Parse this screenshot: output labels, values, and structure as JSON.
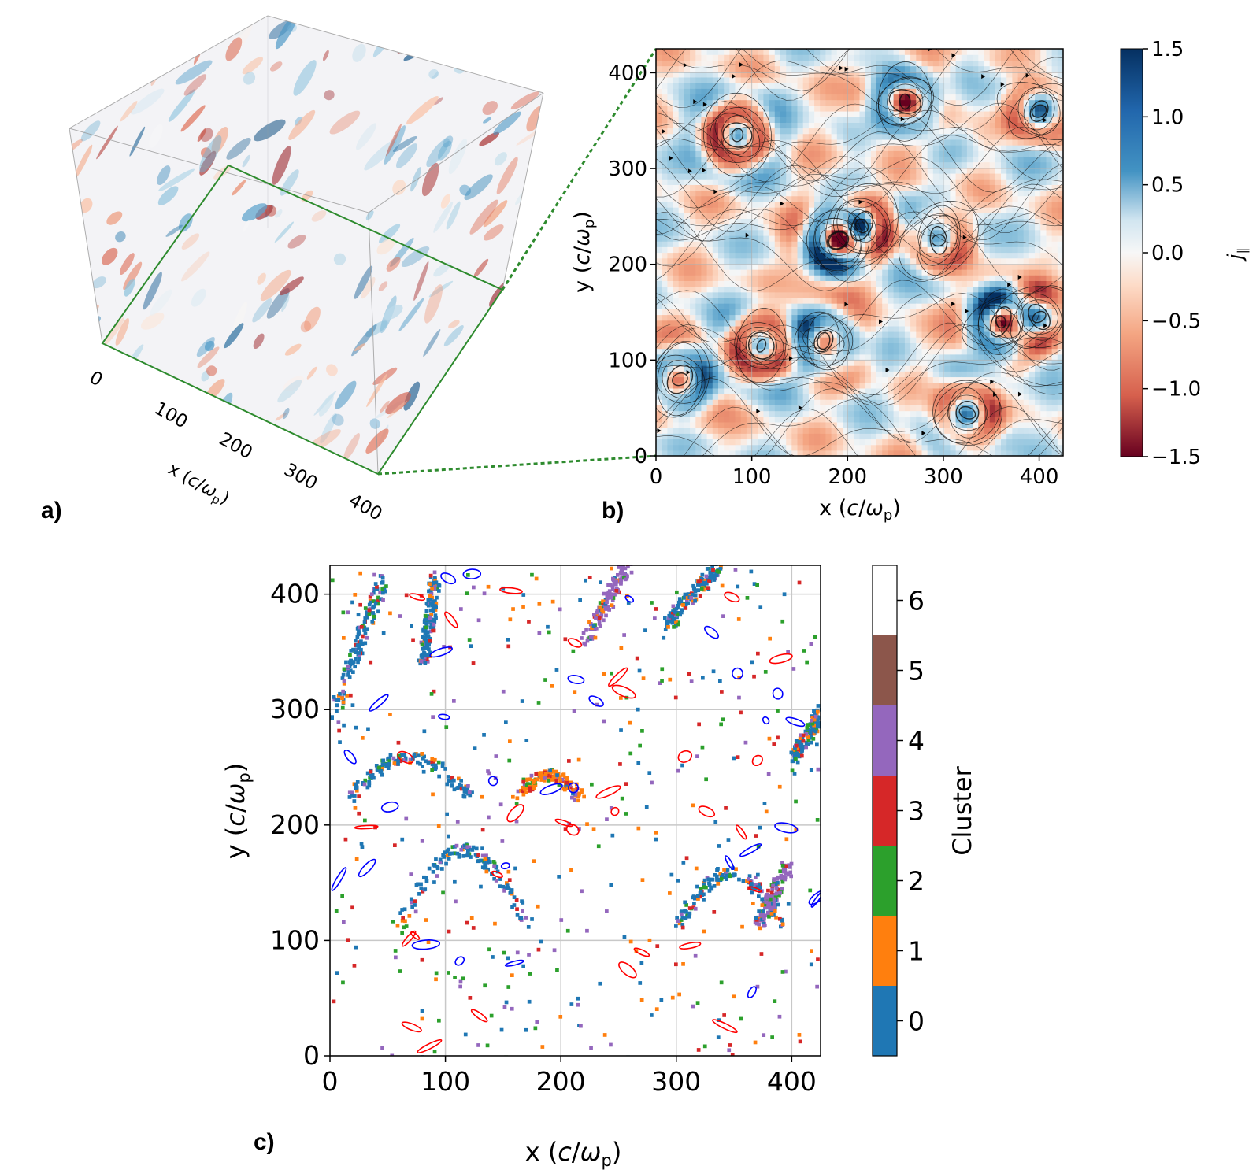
{
  "chart_data": [
    {
      "panel": "a)",
      "type": "heatmap",
      "x_axis": {
        "label": "x (c/ωp)",
        "ticks": [
          0,
          100,
          200,
          300,
          400
        ]
      },
      "colormap": "RdBu",
      "slice_plane_color": "#2e8b2e"
    },
    {
      "panel": "b)",
      "type": "heatmap",
      "xlabel": "x (c/ωp)",
      "ylabel": "y (c/ωp)",
      "xlim": [
        0,
        425
      ],
      "ylim": [
        0,
        425
      ],
      "xticks": [
        0,
        100,
        200,
        300,
        400
      ],
      "yticks": [
        0,
        100,
        200,
        300,
        400
      ],
      "grid": true,
      "colormap": "RdBu",
      "colorbar": {
        "label": "j∥",
        "range": [
          -1.5,
          1.5
        ],
        "ticks": [
          "1.5",
          "1.0",
          "0.5",
          "0.0",
          "−0.5",
          "−1.0",
          "−1.5"
        ]
      },
      "overlay": "magnetic field streamlines",
      "vortices": [
        {
          "x": 85,
          "y": 335,
          "strength": 1.0
        },
        {
          "x": 260,
          "y": 370,
          "strength": -0.9
        },
        {
          "x": 190,
          "y": 225,
          "strength": -1.0
        },
        {
          "x": 215,
          "y": 240,
          "strength": 0.8
        },
        {
          "x": 360,
          "y": 140,
          "strength": -1.0
        },
        {
          "x": 400,
          "y": 360,
          "strength": 0.7
        },
        {
          "x": 25,
          "y": 80,
          "strength": -0.8
        },
        {
          "x": 110,
          "y": 115,
          "strength": 0.9
        },
        {
          "x": 325,
          "y": 45,
          "strength": 0.8
        },
        {
          "x": 400,
          "y": 145,
          "strength": 0.7
        },
        {
          "x": 175,
          "y": 120,
          "strength": -0.7
        },
        {
          "x": 295,
          "y": 225,
          "strength": 0.6
        }
      ]
    },
    {
      "panel": "c)",
      "type": "heatmap",
      "xlabel": "x (c/ωp)",
      "ylabel": "y (c/ωp)",
      "xlim": [
        0,
        425
      ],
      "ylim": [
        0,
        425
      ],
      "xticks": [
        0,
        100,
        200,
        300,
        400
      ],
      "yticks": [
        0,
        100,
        200,
        300,
        400
      ],
      "grid": true,
      "colorbar": {
        "label": "Cluster",
        "ticks": [
          "6",
          "5",
          "4",
          "3",
          "2",
          "1",
          "0"
        ],
        "colors": [
          "#ffffff",
          "#8c564b",
          "#9467bd",
          "#d62728",
          "#2ca02c",
          "#ff7f0e",
          "#1f77b4"
        ]
      },
      "contour_colors": [
        "#0000ff",
        "#ff0000"
      ],
      "structures": [
        {
          "x": [
            0,
            45
          ],
          "y": [
            295,
            415
          ],
          "cluster": 0
        },
        {
          "x": [
            15,
            120
          ],
          "y": [
            225,
            260
          ],
          "cluster": 0
        },
        {
          "x": [
            60,
            170
          ],
          "y": [
            115,
            180
          ],
          "cluster": 0
        },
        {
          "x": [
            300,
            390
          ],
          "y": [
            115,
            160
          ],
          "cluster": 0
        },
        {
          "x": [
            400,
            425
          ],
          "y": [
            260,
            300
          ],
          "cluster": 0
        },
        {
          "x": [
            220,
            255
          ],
          "y": [
            360,
            425
          ],
          "cluster": 4
        },
        {
          "x": [
            290,
            335
          ],
          "y": [
            375,
            425
          ],
          "cluster": 0
        },
        {
          "x": [
            80,
            90
          ],
          "y": [
            340,
            420
          ],
          "cluster": 0
        },
        {
          "x": [
            160,
            215
          ],
          "y": [
            225,
            245
          ],
          "cluster": 1
        },
        {
          "x": [
            370,
            395
          ],
          "y": [
            115,
            165
          ],
          "cluster": 4
        }
      ]
    }
  ],
  "labels": {
    "panel_a": "a)",
    "panel_b": "b)",
    "panel_c": "c)"
  }
}
